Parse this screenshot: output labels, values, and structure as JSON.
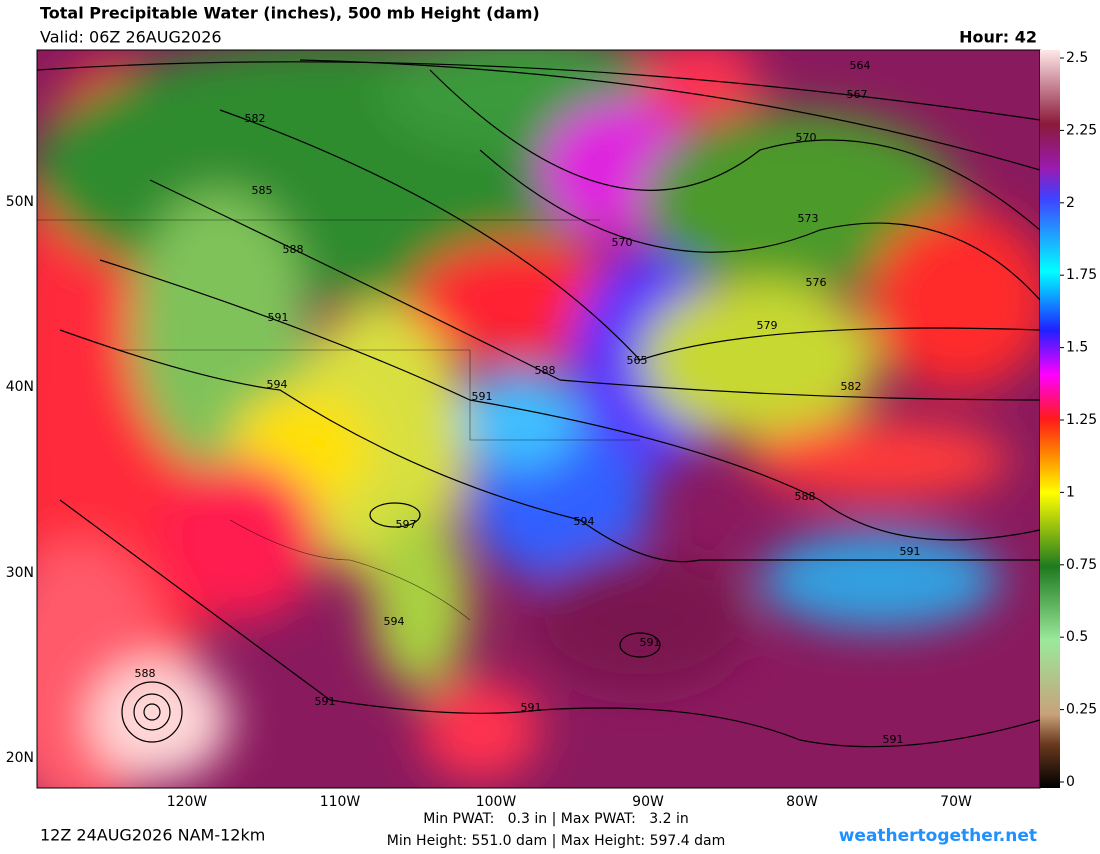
{
  "header": {
    "title": "Total Precipitable Water (inches), 500 mb Height (dam)",
    "valid": "Valid: 06Z 26AUG2026",
    "hour": "Hour: 42"
  },
  "map": {
    "lat_labels": [
      "50N",
      "40N",
      "30N",
      "20N"
    ],
    "lon_labels": [
      "120W",
      "110W",
      "100W",
      "90W",
      "80W",
      "70W"
    ],
    "contour_labels": [
      "564",
      "567",
      "570",
      "573",
      "576",
      "579",
      "582",
      "588",
      "591",
      "591",
      "570",
      "565",
      "588",
      "591",
      "594",
      "591",
      "591",
      "594",
      "597",
      "594",
      "591",
      "588",
      "585",
      "582",
      "588",
      "591"
    ]
  },
  "colorbar": {
    "range": [
      0,
      2.5
    ],
    "ticks": [
      0,
      0.25,
      0.5,
      0.75,
      1,
      1.25,
      1.5,
      1.75,
      2,
      2.25,
      2.5
    ]
  },
  "footer": {
    "run": "12Z 24AUG2026 NAM-12km",
    "pwat": "Min PWAT:   0.3 in | Max PWAT:   3.2 in",
    "height": "Min Height: 551.0 dam | Max Height: 597.4 dam",
    "site": "weathertogether.net"
  }
}
